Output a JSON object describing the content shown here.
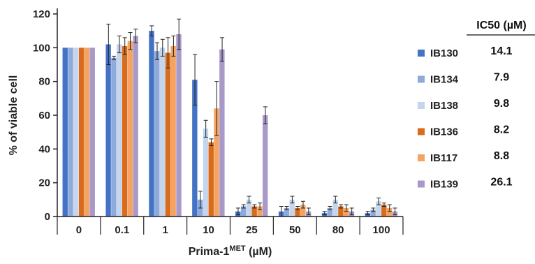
{
  "chart_data": {
    "type": "bar",
    "title": "",
    "xlabel": "Prima-1",
    "xlabel_superscript": "MET",
    "xlabel_suffix": " (µM)",
    "ylabel": "% of viable cell",
    "ylim": [
      0,
      120
    ],
    "yticks": [
      0,
      20,
      40,
      60,
      80,
      100,
      120
    ],
    "grid": false,
    "legend_position": "right",
    "categories": [
      "0",
      "0.1",
      "1",
      "10",
      "25",
      "50",
      "80",
      "100"
    ],
    "series": [
      {
        "name": "IB130",
        "color": "#4472c4",
        "ic50": "14.1",
        "values": [
          100,
          102,
          110,
          81,
          3,
          3,
          2,
          2
        ],
        "errors": [
          0,
          12,
          3,
          15,
          2,
          3,
          1,
          1
        ]
      },
      {
        "name": "IB134",
        "color": "#8eaadb",
        "ic50": "7.9",
        "values": [
          100,
          94,
          98,
          10,
          6,
          5,
          5,
          4
        ],
        "errors": [
          0,
          1,
          5,
          5,
          1,
          1,
          1,
          1
        ]
      },
      {
        "name": "IB138",
        "color": "#c5d5ec",
        "ic50": "9.8",
        "values": [
          100,
          102,
          100,
          52,
          10,
          10,
          10,
          9
        ],
        "errors": [
          0,
          5,
          5,
          5,
          2,
          2,
          2,
          2
        ]
      },
      {
        "name": "IB136",
        "color": "#d86c1c",
        "ic50": "8.2",
        "values": [
          100,
          101,
          97,
          44,
          6,
          5,
          6,
          7
        ],
        "errors": [
          0,
          5,
          9,
          2,
          1,
          1,
          1,
          1
        ]
      },
      {
        "name": "IB117",
        "color": "#f4a460",
        "ic50": "8.8",
        "values": [
          100,
          104,
          101,
          64,
          6,
          7,
          5,
          5
        ],
        "errors": [
          0,
          5,
          6,
          16,
          2,
          2,
          2,
          2
        ]
      },
      {
        "name": "IB139",
        "color": "#a899c8",
        "ic50": "26.1",
        "values": [
          100,
          107,
          108,
          99,
          60,
          3,
          3,
          3
        ],
        "errors": [
          0,
          4,
          9,
          7,
          5,
          2,
          2,
          2
        ]
      }
    ],
    "ic50_header": "IC50 (µM)"
  }
}
